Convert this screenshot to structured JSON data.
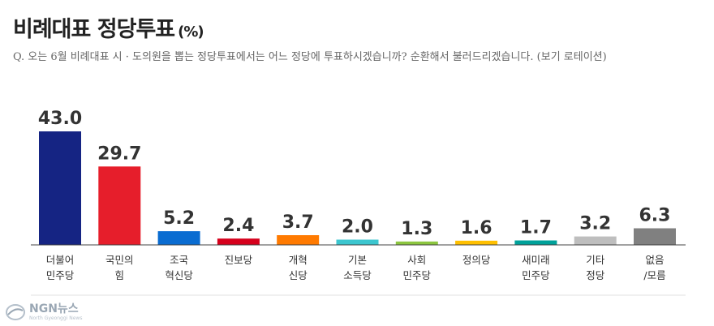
{
  "header": {
    "title": "비례대표 정당투표",
    "unit": "(%)",
    "question": "Q. 오는 6월 비례대표 시 · 도의원을 뽑는 정당투표에서는 어느 정당에 투표하시겠습니까? 순환해서 불러드리겠습니다. (보기 로테이션)"
  },
  "brand": {
    "name": "NGN뉴스",
    "tagline": "North Gyeonggi News"
  },
  "chart_data": {
    "type": "bar",
    "title": "비례대표 정당투표",
    "ylabel": "(%)",
    "ylim": [
      0,
      43
    ],
    "grid": false,
    "categories": [
      [
        "더불어",
        "민주당"
      ],
      [
        "국민의",
        "힘"
      ],
      [
        "조국",
        "혁신당"
      ],
      [
        "진보당"
      ],
      [
        "개혁",
        "신당"
      ],
      [
        "기본",
        "소득당"
      ],
      [
        "사회",
        "민주당"
      ],
      [
        "정의당"
      ],
      [
        "새미래",
        "민주당"
      ],
      [
        "기타",
        "정당"
      ],
      [
        "없음",
        "/모름"
      ]
    ],
    "values": [
      43.0,
      29.7,
      5.2,
      2.4,
      3.7,
      2.0,
      1.3,
      1.6,
      1.7,
      3.2,
      6.3
    ],
    "value_labels": [
      "43.0",
      "29.7",
      "5.2",
      "2.4",
      "3.7",
      "2.0",
      "1.3",
      "1.6",
      "1.7",
      "3.2",
      "6.3"
    ],
    "colors": [
      "#152483",
      "#E61E2B",
      "#0A6CD1",
      "#D6001C",
      "#FF7A00",
      "#3CC6CF",
      "#8CC63F",
      "#FFC000",
      "#00A19A",
      "#BEBEBE",
      "#808080"
    ]
  }
}
